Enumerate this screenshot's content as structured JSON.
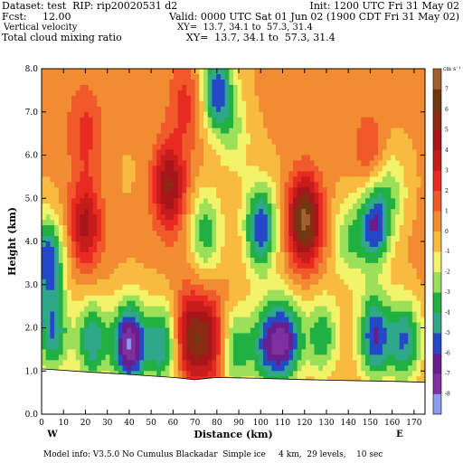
{
  "header": {
    "dataset": "Dataset: test  RIP: rip20020531 d2",
    "init": "Init: 1200 UTC Fri 31 May 02",
    "fcst": "Fcst:     12.00",
    "valid": "Valid: 0000 UTC Sat 01 Jun 02 (1900 CDT Fri 31 May 02)",
    "field1": "Vertical velocity",
    "xy1": "XY=  13.7, 34.1 to  57.3, 31.4",
    "field2": "Total cloud mixing ratio",
    "xy2": "XY=  13.7, 34.1 to  57.3, 31.4"
  },
  "footer": {
    "model_info": "Model info: V3.5.0 No Cumulus Blackadar  Simple ice     4 km,  29 levels,    10 sec"
  },
  "colors": {
    "scale": [
      "#8C99F0",
      "#7E2FA0",
      "#6A1E8C",
      "#2448C8",
      "#2FA88A",
      "#21B042",
      "#9CE05A",
      "#F3F36A",
      "#F7BB3F",
      "#F28C32",
      "#F05A2A",
      "#E82B22",
      "#C71C1C",
      "#A8151A",
      "#8A2B14",
      "#6E3A14",
      "#A0612E"
    ]
  },
  "chart_data": {
    "type": "heatmap",
    "title": "Vertical velocity",
    "xlabel": "Distance (km)",
    "ylabel": "Height (km)",
    "xlim": [
      0,
      175
    ],
    "ylim": [
      0,
      8
    ],
    "x_ticks": [
      0,
      10,
      20,
      30,
      40,
      50,
      60,
      70,
      80,
      90,
      100,
      110,
      120,
      130,
      140,
      150,
      160,
      170
    ],
    "y_ticks": [
      0.0,
      1.0,
      2.0,
      3.0,
      4.0,
      5.0,
      6.0,
      7.0,
      8.0
    ],
    "end_labels": {
      "left": "W",
      "right": "E"
    },
    "colorbar": {
      "unit": "cm s⁻¹",
      "levels": [
        -8,
        -7,
        -6,
        -5,
        -4,
        -3,
        -2,
        -1,
        0,
        1,
        2,
        3,
        4,
        5,
        6,
        7
      ],
      "labels": [
        "-8",
        "-7",
        "-6",
        "-5",
        "-4",
        "-3",
        "-2",
        "-1",
        "0",
        "1",
        "2",
        "3",
        "4",
        "5",
        "6",
        "7"
      ]
    },
    "terrain_top_km": [
      [
        0,
        1.05
      ],
      [
        20,
        0.98
      ],
      [
        40,
        0.92
      ],
      [
        60,
        0.85
      ],
      [
        70,
        0.8
      ],
      [
        80,
        0.85
      ],
      [
        100,
        0.83
      ],
      [
        120,
        0.8
      ],
      [
        140,
        0.78
      ],
      [
        160,
        0.76
      ],
      [
        175,
        0.74
      ]
    ],
    "features": [
      {
        "x": 5,
        "y": 1.9,
        "v": -5
      },
      {
        "x": 23,
        "y": 1.7,
        "v": -5
      },
      {
        "x": 40,
        "y": 1.6,
        "v": -8
      },
      {
        "x": 55,
        "y": 1.6,
        "v": -5
      },
      {
        "x": 68,
        "y": 1.8,
        "v": 5
      },
      {
        "x": 78,
        "y": 1.7,
        "v": 4
      },
      {
        "x": 88,
        "y": 1.5,
        "v": -4
      },
      {
        "x": 103,
        "y": 1.6,
        "v": -5
      },
      {
        "x": 112,
        "y": 1.7,
        "v": -6
      },
      {
        "x": 128,
        "y": 1.8,
        "v": -4
      },
      {
        "x": 152,
        "y": 1.8,
        "v": -6
      },
      {
        "x": 166,
        "y": 1.7,
        "v": -5
      },
      {
        "x": 3,
        "y": 3.6,
        "v": -6
      },
      {
        "x": 20,
        "y": 4.4,
        "v": 4
      },
      {
        "x": 58,
        "y": 5.3,
        "v": 5
      },
      {
        "x": 75,
        "y": 4.2,
        "v": -4
      },
      {
        "x": 100,
        "y": 4.3,
        "v": -6
      },
      {
        "x": 120,
        "y": 4.5,
        "v": 7
      },
      {
        "x": 140,
        "y": 4.0,
        "v": -3
      },
      {
        "x": 152,
        "y": 4.4,
        "v": -6
      },
      {
        "x": 88,
        "y": 6.5,
        "v": -2
      },
      {
        "x": 20,
        "y": 6.5,
        "v": 2
      },
      {
        "x": 66,
        "y": 7.2,
        "v": 2
      },
      {
        "x": 80,
        "y": 7.5,
        "v": -6
      },
      {
        "x": 150,
        "y": 6.0,
        "v": 2
      },
      {
        "x": 160,
        "y": 5.2,
        "v": -2
      }
    ]
  }
}
